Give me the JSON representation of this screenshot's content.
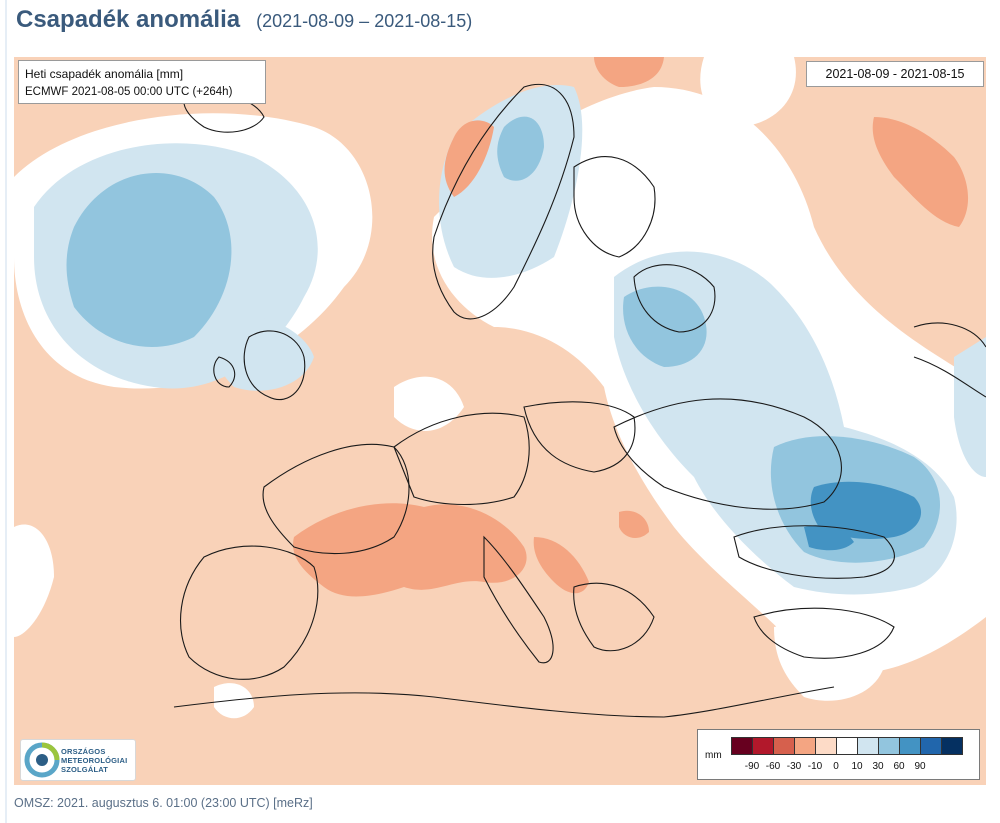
{
  "header": {
    "title": "Csapadék anomália",
    "period": "(2021-08-09 – 2021-08-15)"
  },
  "map": {
    "info_line1": "Heti csapadék anomália [mm]",
    "info_line2": "ECMWF 2021-08-05 00:00 UTC  (+264h)",
    "date_range": "2021-08-09 - 2021-08-15"
  },
  "legend": {
    "unit": "mm",
    "ticks": [
      "-90",
      "-60",
      "-30",
      "-10",
      "0",
      "10",
      "30",
      "60",
      "90"
    ],
    "colors": [
      "#67001f",
      "#b2182b",
      "#d6604d",
      "#f4a582",
      "#fddbc7",
      "#ffffff",
      "#d1e5f0",
      "#92c5de",
      "#4393c3",
      "#2166ac",
      "#053061"
    ]
  },
  "logo": {
    "lines": [
      "ORSZÁGOS",
      "METEOROLÓGIAI",
      "SZOLGÁLAT"
    ]
  },
  "footer": {
    "text": "OMSZ: 2021. augusztus 6. 01:00 (23:00  UTC)  [meRz]"
  }
}
